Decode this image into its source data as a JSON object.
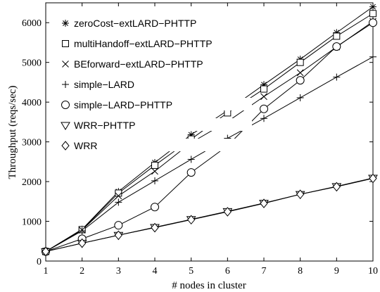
{
  "chart_data": {
    "type": "line",
    "xlabel": "# nodes in cluster",
    "ylabel": "Throughput (reqs/sec)",
    "xlim": [
      1,
      10
    ],
    "ylim": [
      0,
      6500
    ],
    "xticks": [
      1,
      2,
      3,
      4,
      5,
      6,
      7,
      8,
      9,
      10
    ],
    "yticks": [
      0,
      1000,
      2000,
      3000,
      4000,
      5000,
      6000
    ],
    "grid": false,
    "legend_position": "top-left",
    "x": [
      1,
      2,
      3,
      4,
      5,
      6,
      7,
      8,
      9,
      10
    ],
    "series": [
      {
        "name": "zeroCost−extLARD−PHTTP",
        "marker": "asterisk",
        "values": [
          240,
          800,
          1750,
          2480,
          3180,
          3790,
          4440,
          5080,
          5750,
          6400
        ]
      },
      {
        "name": "multiHandoff−extLARD−PHTTP",
        "marker": "square",
        "values": [
          240,
          790,
          1710,
          2410,
          3070,
          3730,
          4330,
          5000,
          5660,
          6230
        ]
      },
      {
        "name": "BEforward−extLARD−PHTTP",
        "marker": "x",
        "values": [
          240,
          780,
          1640,
          2260,
          2980,
          3510,
          4140,
          4740,
          5390,
          6030
        ]
      },
      {
        "name": "simple−LARD",
        "marker": "plus",
        "values": [
          240,
          760,
          1480,
          2020,
          2560,
          3090,
          3590,
          4110,
          4630,
          5140
        ]
      },
      {
        "name": "simple−LARD−PHTTP",
        "marker": "circle",
        "values": [
          240,
          560,
          900,
          1360,
          2230,
          2900,
          3830,
          4550,
          5400,
          6000
        ]
      },
      {
        "name": "WRR−PHTTP",
        "marker": "triangle-down",
        "values": [
          240,
          450,
          650,
          850,
          1050,
          1250,
          1460,
          1680,
          1880,
          2090
        ]
      },
      {
        "name": "WRR",
        "marker": "diamond",
        "values": [
          240,
          450,
          650,
          840,
          1040,
          1240,
          1450,
          1680,
          1870,
          2080
        ]
      }
    ]
  }
}
